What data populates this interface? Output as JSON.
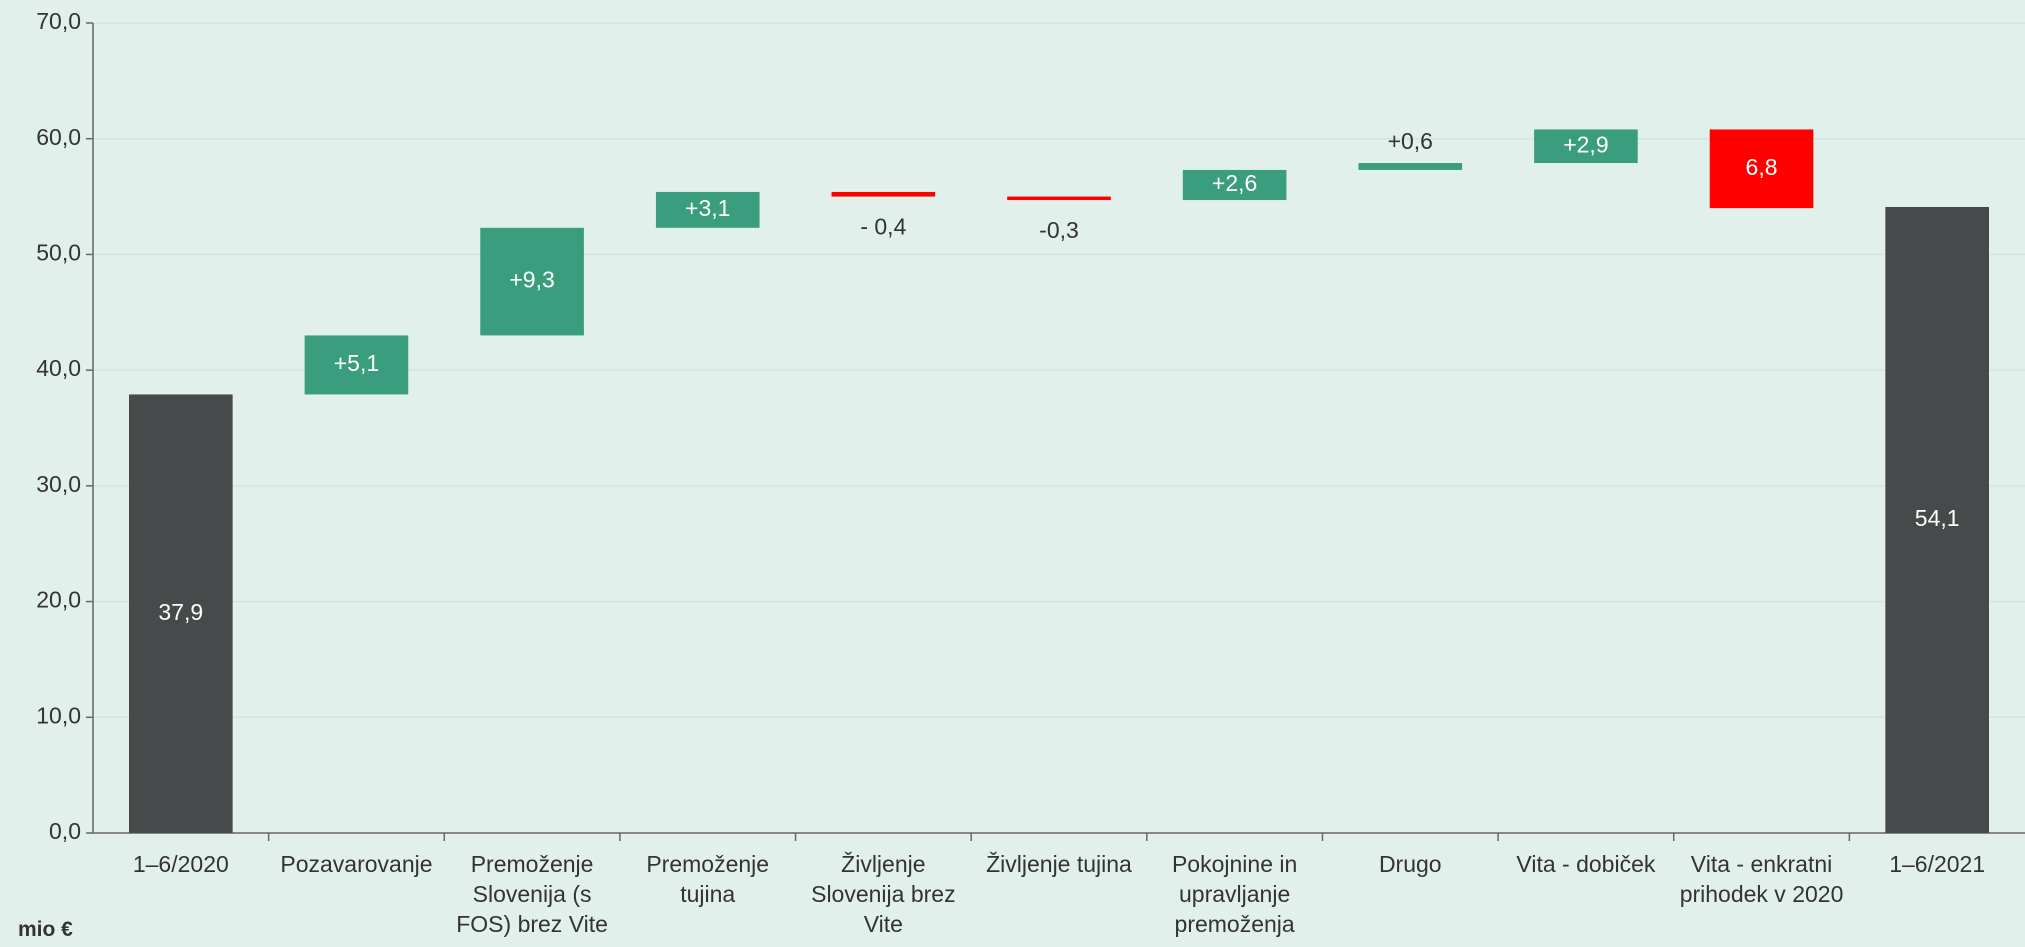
{
  "chart_data": {
    "type": "waterfall",
    "categories": [
      "1–6/2020",
      "Pozavarovanje",
      "Premoženje Slovenija (s FOS) brez Vite",
      "Premoženje tujina",
      "Življenje Slovenija brez Vite",
      "Življenje tujina",
      "Pokojnine in upravljanje premoženja",
      "Drugo",
      "Vita - dobiček",
      "Vita - enkratni prihodek v 2020",
      "1–6/2021"
    ],
    "values": [
      37.9,
      5.1,
      9.3,
      3.1,
      -0.4,
      -0.3,
      2.6,
      0.6,
      2.9,
      -6.8,
      54.1
    ],
    "value_labels": [
      "37,9",
      "+5,1",
      "+9,3",
      "+3,1",
      "- 0,4",
      "-0,3",
      "+2,6",
      "+0,6",
      "+2,9",
      "6,8",
      "54,1"
    ],
    "is_total": [
      true,
      false,
      false,
      false,
      false,
      false,
      false,
      false,
      false,
      false,
      true
    ],
    "total_color": "#464a4a",
    "increase_color": "#3a9e7e",
    "decrease_color": "#ff0000",
    "ylim": [
      0,
      70
    ],
    "yticks": [
      {
        "value": 0,
        "label": "0,0"
      },
      {
        "value": 10,
        "label": "10,0"
      },
      {
        "value": 20,
        "label": "20,0"
      },
      {
        "value": 30,
        "label": "30,0"
      },
      {
        "value": 40,
        "label": "40,0"
      },
      {
        "value": 50,
        "label": "50,0"
      },
      {
        "value": 60,
        "label": "60,0"
      },
      {
        "value": 70,
        "label": "70,0"
      }
    ],
    "y_axis_label": "mio €",
    "grid": true
  }
}
